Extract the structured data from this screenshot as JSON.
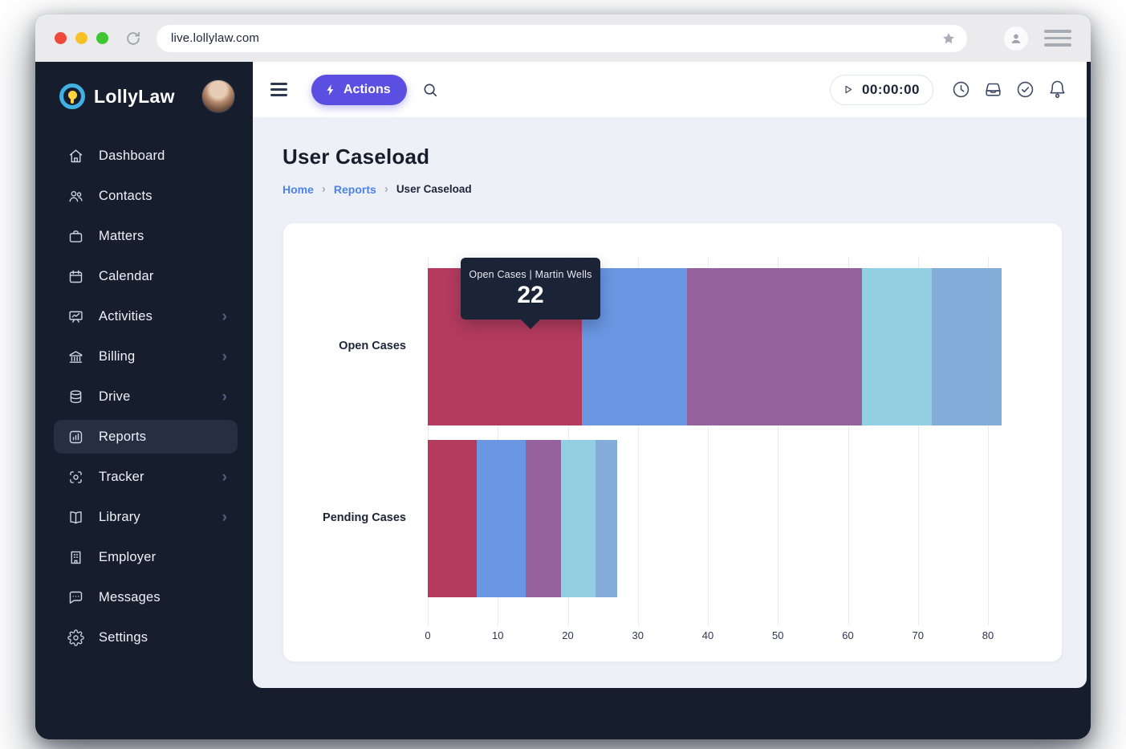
{
  "browser": {
    "url": "live.lollylaw.com"
  },
  "brand": {
    "name": "LollyLaw"
  },
  "sidebar": {
    "items": [
      {
        "label": "Dashboard",
        "expandable": false,
        "active": false
      },
      {
        "label": "Contacts",
        "expandable": false,
        "active": false
      },
      {
        "label": "Matters",
        "expandable": false,
        "active": false
      },
      {
        "label": "Calendar",
        "expandable": false,
        "active": false
      },
      {
        "label": "Activities",
        "expandable": true,
        "active": false
      },
      {
        "label": "Billing",
        "expandable": true,
        "active": false
      },
      {
        "label": "Drive",
        "expandable": true,
        "active": false
      },
      {
        "label": "Reports",
        "expandable": false,
        "active": true
      },
      {
        "label": "Tracker",
        "expandable": true,
        "active": false
      },
      {
        "label": "Library",
        "expandable": true,
        "active": false
      },
      {
        "label": "Employer",
        "expandable": false,
        "active": false
      },
      {
        "label": "Messages",
        "expandable": false,
        "active": false
      },
      {
        "label": "Settings",
        "expandable": false,
        "active": false
      }
    ]
  },
  "topbar": {
    "actions_label": "Actions",
    "timer": "00:00:00"
  },
  "page": {
    "title": "User Caseload",
    "breadcrumb": [
      "Home",
      "Reports",
      "User Caseload"
    ],
    "breadcrumb_separator": "›"
  },
  "chart_data": {
    "type": "bar",
    "orientation": "horizontal_stacked",
    "categories": [
      "Open Cases",
      "Pending Cases"
    ],
    "x_ticks": [
      0,
      10,
      20,
      30,
      40,
      50,
      60,
      70,
      80
    ],
    "xlim": [
      0,
      82
    ],
    "grid": "vertical",
    "legend": "none",
    "series": [
      {
        "name": "Martin Wells",
        "color": "#b43b5e",
        "values": [
          22,
          7
        ]
      },
      {
        "name": "",
        "color": "#6a96e2",
        "values": [
          15,
          7
        ]
      },
      {
        "name": "",
        "color": "#96629e",
        "values": [
          25,
          5
        ]
      },
      {
        "name": "",
        "color": "#93cfe2",
        "values": [
          10,
          5
        ]
      },
      {
        "name": "",
        "color": "#84aed9",
        "values": [
          10,
          3
        ]
      }
    ],
    "tooltip": {
      "title": "Open Cases | Martin Wells",
      "value": "22"
    }
  },
  "colors": {
    "accent_purple": "#5a4fe0",
    "link_blue": "#4d82e8",
    "sidebar_bg": "#161e2e",
    "content_bg": "#edf1f7",
    "tooltip_bg": "#1b2336",
    "gridline": "#e8eaf1"
  }
}
